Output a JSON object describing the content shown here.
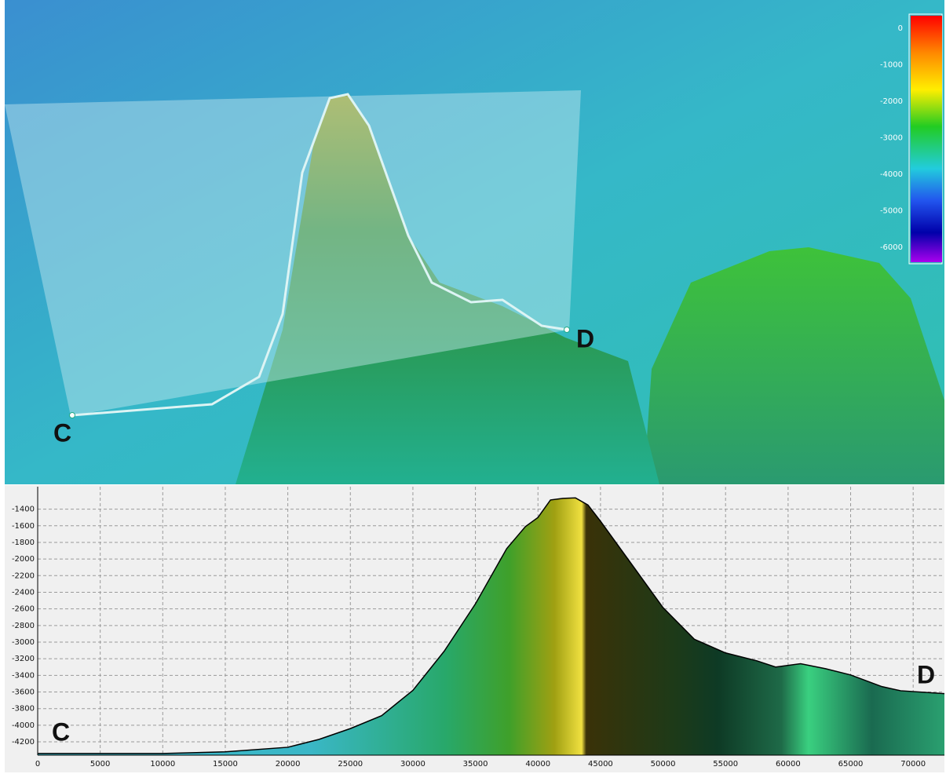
{
  "terrain_view": {
    "colorbar": {
      "ticks": [
        0,
        -1000,
        -2000,
        -3000,
        -4000,
        -5000,
        -6000
      ]
    },
    "labels": [
      "C",
      "D"
    ]
  },
  "chart_data": {
    "type": "area",
    "x": [
      0,
      10000,
      15000,
      20000,
      22500,
      25000,
      27500,
      30000,
      32500,
      35000,
      37500,
      39000,
      40000,
      41000,
      42000,
      43000,
      44000,
      45000,
      47500,
      50000,
      52500,
      55000,
      57500,
      59000,
      61000,
      63000,
      65000,
      67500,
      69000,
      72500
    ],
    "values": [
      -4340,
      -4340,
      -4320,
      -4265,
      -4170,
      -4040,
      -3885,
      -3580,
      -3110,
      -2540,
      -1875,
      -1610,
      -1500,
      -1290,
      -1270,
      -1265,
      -1350,
      -1545,
      -2065,
      -2585,
      -2965,
      -3130,
      -3225,
      -3300,
      -3260,
      -3320,
      -3395,
      -3535,
      -3585,
      -3620
    ],
    "xlim": [
      0,
      72500
    ],
    "xticks": [
      0,
      5000,
      10000,
      15000,
      20000,
      25000,
      30000,
      35000,
      40000,
      45000,
      50000,
      55000,
      60000,
      65000,
      70000
    ],
    "ylim": [
      -4360,
      -1130
    ],
    "yticks": [
      -1400,
      -1600,
      -1800,
      -2000,
      -2200,
      -2400,
      -2600,
      -2800,
      -3000,
      -3200,
      -3400,
      -3600,
      -3800,
      -4000,
      -4200
    ],
    "grid": true,
    "annotations": [
      "C",
      "D"
    ]
  }
}
